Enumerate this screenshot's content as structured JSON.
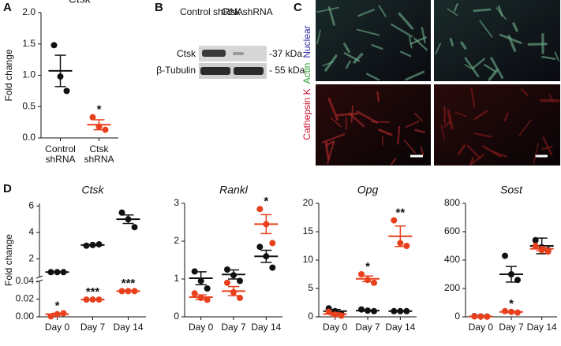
{
  "panel_labels": [
    "A",
    "B",
    "C",
    "D"
  ],
  "blot": {
    "col_labels": [
      "Control shRNA",
      "Ctsk shRNA"
    ],
    "rows": [
      {
        "label": "Ctsk",
        "marker": "-37 kDa"
      },
      {
        "label": "β-Tubulin",
        "marker": "- 55 kDa"
      }
    ]
  },
  "micrograph": {
    "stain_labels": [
      {
        "text": "Cathepsin K",
        "color": "#c8102e"
      },
      {
        "text": "Actin",
        "color": "#2aa02a"
      },
      {
        "text": "Nuclear",
        "color": "#2a2aa0"
      }
    ]
  },
  "chart_data": [
    {
      "type": "dot",
      "title": "Ctsk",
      "y_label": "Fold change",
      "categories": [
        "Control shRNA",
        "Ctsk shRNA"
      ],
      "ylim": [
        0,
        2
      ],
      "yticks": [
        {
          "value": 0,
          "label": "0.0"
        },
        {
          "value": 0.5,
          "label": "0.5"
        },
        {
          "value": 1,
          "label": "1.0"
        },
        {
          "value": 1.5,
          "label": "1.5"
        },
        {
          "value": 2,
          "label": "2.0"
        }
      ],
      "series": [
        {
          "color": "#111111",
          "values": [
            [
              1.48,
              0.98,
              0.75
            ],
            null
          ],
          "means": [
            1.07,
            null
          ],
          "errors": [
            0.25,
            null
          ],
          "annotations": [
            null,
            null
          ]
        },
        {
          "color": "#e8401c",
          "values": [
            null,
            [
              0.33,
              0.18,
              0.13
            ]
          ],
          "means": [
            null,
            0.21
          ],
          "errors": [
            null,
            0.08
          ],
          "annotations": [
            null,
            "*"
          ]
        }
      ]
    },
    {
      "type": "dot",
      "title": "Ctsk",
      "y_label": "Fold change",
      "categories": [
        "Day 0",
        "Day 7",
        "Day 14"
      ],
      "ylim": [
        0,
        0.04
      ],
      "yticks": [
        {
          "value": 0,
          "label": "0.00"
        },
        {
          "value": 0.02,
          "label": "0.02"
        },
        {
          "value": 0.04,
          "label": "0.04"
        }
      ],
      "upper_ylim": [
        0.6,
        6.2
      ],
      "upper_yticks": [
        2,
        4,
        6
      ],
      "series": [
        {
          "color": "#111111",
          "values": [
            [
              1,
              1,
              1
            ],
            [
              3.0,
              3.05,
              3.1
            ],
            [
              5.5,
              5.0,
              4.4
            ]
          ],
          "means": [
            1,
            3.05,
            5.0
          ],
          "errors": [
            0.01,
            0.03,
            0.32
          ],
          "annotations": [
            null,
            null,
            null
          ]
        },
        {
          "color": "#e8401c",
          "values": [
            [
              0.0005,
              0.003,
              0.004
            ],
            [
              0.0195,
              0.0195,
              0.0195
            ],
            [
              0.029,
              0.029,
              0.029
            ]
          ],
          "means": [
            0.003,
            0.0195,
            0.029
          ],
          "errors": [
            0.001,
            0.0002,
            0.0002
          ],
          "annotations": [
            "*",
            "***",
            "***"
          ]
        }
      ]
    },
    {
      "type": "dot",
      "title": "Rankl",
      "categories": [
        "Day 0",
        "Day 7",
        "Day 14"
      ],
      "ylim": [
        0,
        3
      ],
      "yticks": [
        0,
        1,
        2,
        3
      ],
      "series": [
        {
          "color": "#111111",
          "values": [
            [
              1.2,
              0.95,
              0.75
            ],
            [
              1.25,
              1.1,
              0.95
            ],
            [
              1.85,
              1.6,
              1.3
            ]
          ],
          "means": [
            1.02,
            1.12,
            1.6
          ],
          "errors": [
            0.17,
            0.12,
            0.16
          ],
          "annotations": [
            null,
            null,
            null
          ]
        },
        {
          "color": "#e8401c",
          "values": [
            [
              0.62,
              0.5,
              0.45
            ],
            [
              0.9,
              0.65,
              0.5
            ],
            [
              2.85,
              2.45,
              1.95
            ]
          ],
          "means": [
            0.52,
            0.68,
            2.45
          ],
          "errors": [
            0.06,
            0.12,
            0.25
          ],
          "annotations": [
            null,
            null,
            "*"
          ]
        }
      ]
    },
    {
      "type": "dot",
      "title": "Opg",
      "categories": [
        "Day 0",
        "Day 7",
        "Day 14"
      ],
      "ylim": [
        0,
        20
      ],
      "yticks": [
        0,
        5,
        10,
        15,
        20
      ],
      "series": [
        {
          "color": "#111111",
          "values": [
            [
              1.5,
              1.0,
              0.5
            ],
            [
              1.3,
              1.1,
              1.0
            ],
            [
              1,
              1,
              1
            ]
          ],
          "means": [
            1.0,
            1.1,
            1.0
          ],
          "errors": [
            0.3,
            0.1,
            0.05
          ],
          "annotations": [
            null,
            null,
            null
          ]
        },
        {
          "color": "#e8401c",
          "values": [
            [
              0.9,
              0.4,
              0.2
            ],
            [
              7.5,
              6.5,
              6.0
            ],
            [
              17,
              13,
              12.5
            ]
          ],
          "means": [
            0.5,
            6.7,
            14.2
          ],
          "errors": [
            0.2,
            0.5,
            1.8
          ],
          "annotations": [
            null,
            "*",
            "**"
          ]
        }
      ]
    },
    {
      "type": "dot",
      "title": "Sost",
      "categories": [
        "Day 0",
        "Day 7",
        "Day 14"
      ],
      "ylim": [
        0,
        800
      ],
      "yticks": [
        0,
        200,
        400,
        600,
        800
      ],
      "series": [
        {
          "color": "#111111",
          "values": [
            [
              5,
              3,
              2
            ],
            [
              430,
              300,
              260
            ],
            [
              540,
              490,
              470
            ]
          ],
          "means": [
            3,
            300,
            500
          ],
          "errors": [
            1,
            55,
            55
          ],
          "annotations": [
            null,
            null,
            null
          ]
        },
        {
          "color": "#e8401c",
          "values": [
            [
              3,
              2,
              1
            ],
            [
              40,
              35,
              30
            ],
            [
              500,
              470,
              460
            ]
          ],
          "means": [
            2,
            35,
            480
          ],
          "errors": [
            1,
            3,
            15
          ],
          "annotations": [
            null,
            "*",
            null
          ]
        }
      ]
    }
  ]
}
